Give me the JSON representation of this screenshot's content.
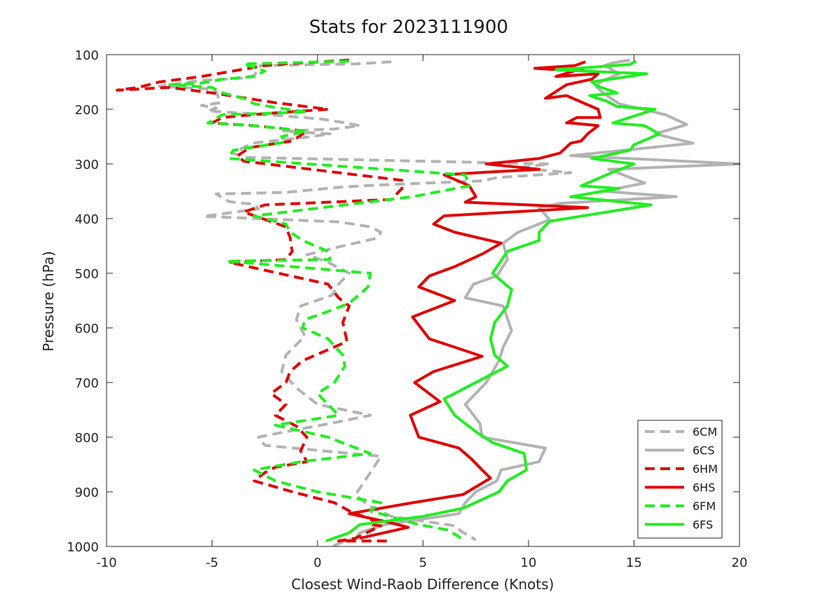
{
  "chart_data": {
    "type": "line",
    "title": "Stats for 2023111900",
    "xlabel": "Closest Wind-Raob Difference (Knots)",
    "ylabel": "Pressure (hPa)",
    "xlim": [
      -10,
      20
    ],
    "ylim": [
      1000,
      100
    ],
    "y_inverted": true,
    "xticks": [
      -10,
      -5,
      0,
      5,
      10,
      15,
      20
    ],
    "yticks": [
      100,
      200,
      300,
      400,
      500,
      600,
      700,
      800,
      900,
      1000
    ],
    "grid": false,
    "legend_position": "bottom-right",
    "series": [
      {
        "name": "6CM",
        "color": "#b3b3b3",
        "dash": "dashed",
        "x": [
          3.5,
          1.8,
          -2.7,
          -3.0,
          -3.5,
          -5.5,
          -7.5,
          -5.0,
          -4.8,
          -4.6,
          -5.5,
          -4.8,
          -5.2,
          -2.0,
          0.2,
          1.2,
          2.0,
          0.8,
          -1.6,
          0.6,
          -0.5,
          -3.1,
          -4.0,
          -3.5,
          11.0,
          9.5,
          12.0,
          8.5,
          7.8,
          3.3,
          1.2,
          -1.5,
          -4.8,
          -4.2,
          -3.0,
          -2.8,
          -5.4,
          1.0,
          2.5,
          3.0,
          2.8,
          1.2,
          -0.5,
          0.5,
          1.5,
          1.0,
          0.7,
          -0.8,
          -1.0,
          -0.6,
          -1.5,
          -1.7,
          -1.0,
          0.0,
          2.5,
          0.6,
          -1.5,
          -2.8,
          -2.5,
          3.0,
          2.5,
          1.8,
          2.4,
          3.5,
          6.5,
          6.8,
          7.5
        ],
        "y": [
          113,
          117,
          120,
          138,
          143,
          147,
          158,
          163,
          168,
          188,
          193,
          198,
          203,
          211,
          218,
          224,
          230,
          236,
          240,
          245,
          251,
          262,
          280,
          288,
          300,
          307,
          316,
          325,
          331,
          338,
          342,
          352,
          355,
          369,
          374,
          382,
          396,
          406,
          415,
          425,
          436,
          450,
          466,
          480,
          500,
          520,
          540,
          560,
          585,
          615,
          650,
          680,
          710,
          740,
          760,
          775,
          790,
          800,
          815,
          835,
          865,
          905,
          925,
          945,
          962,
          972,
          988
        ]
      },
      {
        "name": "6CS",
        "color": "#b3b3b3",
        "dash": "solid",
        "x": [
          14.8,
          14.0,
          13.6,
          14.3,
          13.5,
          13.2,
          13.6,
          14.3,
          16.5,
          17.5,
          16.0,
          17.8,
          12.0,
          20.0,
          13.8,
          15.5,
          13.5,
          17.0,
          11.5,
          10.5,
          11.0,
          9.5,
          8.8,
          9.0,
          8.5,
          7.4,
          7.0,
          8.8,
          9.2,
          8.8,
          8.6,
          8.0,
          7.0,
          7.7,
          7.8,
          10.8,
          10.5,
          8.7,
          8.5,
          7.5,
          7.0,
          6.7,
          3.2,
          2.0,
          1.8,
          1.3,
          1.0,
          0.8,
          0.8
        ],
        "y": [
          110,
          115,
          120,
          135,
          148,
          158,
          172,
          190,
          210,
          228,
          245,
          262,
          285,
          300,
          310,
          335,
          350,
          360,
          372,
          380,
          402,
          425,
          445,
          475,
          505,
          520,
          545,
          560,
          605,
          635,
          660,
          700,
          740,
          775,
          800,
          820,
          845,
          860,
          880,
          900,
          920,
          940,
          960,
          975,
          985,
          990,
          995,
          998,
          1000
        ]
      },
      {
        "name": "6HM",
        "color": "#e00000",
        "dash": "dashed",
        "x": [
          1.5,
          -1.5,
          -2.5,
          -5.5,
          -7.5,
          -8.5,
          -9.5,
          -7.0,
          -5.0,
          -2.0,
          0.5,
          -2.5,
          -4.5,
          -5.0,
          -3.0,
          -0.5,
          -1.2,
          -3.2,
          -3.8,
          -3.5,
          4.0,
          4.0,
          3.5,
          -2.5,
          -3.5,
          -1.5,
          -1.3,
          -1.2,
          -1.5,
          -4.2,
          0.5,
          1.0,
          1.5,
          1.2,
          1.4,
          -0.7,
          -1.3,
          -1.5,
          -2.2,
          -1.5,
          -2.0,
          -1.0,
          -0.5,
          -0.8,
          -0.5,
          -2.0,
          -2.5,
          -3.0,
          -1.2,
          0.8,
          1.5,
          2.8,
          2.5,
          3.0,
          1.8,
          1.0,
          3.5
        ],
        "y": [
          110,
          117,
          120,
          140,
          150,
          160,
          165,
          160,
          170,
          188,
          200,
          208,
          215,
          225,
          230,
          240,
          258,
          270,
          285,
          295,
          330,
          345,
          365,
          375,
          388,
          415,
          435,
          460,
          475,
          480,
          520,
          545,
          560,
          590,
          625,
          660,
          680,
          700,
          720,
          740,
          760,
          780,
          800,
          825,
          845,
          855,
          865,
          880,
          900,
          920,
          935,
          955,
          960,
          962,
          985,
          990,
          990
        ]
      },
      {
        "name": "6HS",
        "color": "#e00000",
        "dash": "solid",
        "x": [
          12.7,
          12.2,
          10.3,
          11.5,
          12.6,
          11.3,
          13.3,
          13.0,
          11.8,
          10.8,
          11.8,
          13.3,
          13.4,
          12.3,
          11.8,
          12.0,
          13.3,
          12.8,
          12.5,
          12.0,
          11.5,
          10.5,
          8.0,
          10.5,
          8.0,
          6.0,
          7.2,
          7.5,
          7.0,
          10.0,
          12.8,
          6.0,
          5.5,
          6.5,
          8.7,
          7.8,
          6.5,
          5.3,
          4.8,
          6.5,
          4.5,
          5.3,
          7.8,
          5.5,
          4.6,
          5.8,
          4.4,
          4.8,
          6.7,
          7.3,
          7.8,
          8.2,
          6.9,
          4.5,
          1.5,
          3.3,
          4.3,
          2.0
        ],
        "y": [
          113,
          120,
          125,
          128,
          125,
          140,
          135,
          145,
          155,
          180,
          175,
          200,
          215,
          215,
          225,
          225,
          230,
          245,
          258,
          262,
          280,
          290,
          300,
          310,
          315,
          320,
          340,
          360,
          370,
          375,
          380,
          395,
          410,
          425,
          445,
          465,
          488,
          505,
          525,
          550,
          580,
          620,
          652,
          680,
          700,
          735,
          760,
          800,
          820,
          840,
          860,
          875,
          905,
          920,
          940,
          955,
          965,
          985
        ]
      },
      {
        "name": "6FM",
        "color": "#22ee22",
        "dash": "dashed",
        "x": [
          1.5,
          -3.5,
          -2.5,
          -3.0,
          -4.5,
          -5.5,
          -7.0,
          -5.0,
          -4.5,
          -3.5,
          -3.0,
          -1.8,
          -0.5,
          -4.5,
          -5.2,
          -3.0,
          -1.5,
          -0.5,
          -1.7,
          -1.5,
          -4.0,
          -4.2,
          7.0,
          7.2,
          4.5,
          -3.0,
          -1.5,
          -1.3,
          -0.7,
          0.5,
          0.6,
          -4.3,
          2.5,
          2.4,
          1.5,
          0.5,
          -0.6,
          -0.7,
          0.5,
          1.2,
          1.3,
          0.8,
          0.0,
          0.5,
          1.0,
          -2.0,
          0.5,
          2.5,
          -0.8,
          -3.0,
          -2.0,
          0.0,
          3.0,
          2.5,
          4.8,
          6.2,
          6.8
        ],
        "y": [
          112,
          117,
          130,
          140,
          145,
          152,
          155,
          160,
          170,
          180,
          190,
          198,
          205,
          210,
          225,
          230,
          236,
          240,
          250,
          260,
          275,
          290,
          320,
          340,
          360,
          395,
          410,
          425,
          440,
          460,
          475,
          478,
          500,
          525,
          555,
          570,
          585,
          600,
          620,
          650,
          670,
          700,
          720,
          740,
          760,
          778,
          800,
          830,
          845,
          860,
          880,
          900,
          920,
          935,
          960,
          970,
          985
        ]
      },
      {
        "name": "6FS",
        "color": "#22ee22",
        "dash": "solid",
        "x": [
          15.1,
          14.8,
          11.3,
          15.6,
          13.0,
          13.3,
          14.2,
          12.9,
          13.7,
          14.2,
          16.0,
          14.0,
          15.5,
          16.2,
          15.0,
          14.8,
          13.0,
          15.0,
          14.0,
          12.5,
          14.3,
          12.0,
          15.8,
          11.0,
          10.5,
          10.5,
          9.0,
          8.3,
          9.2,
          9.0,
          8.4,
          8.2,
          8.4,
          9.0,
          8.0,
          7.0,
          6.0,
          6.5,
          7.5,
          8.3,
          9.8,
          9.9,
          9.0,
          8.6,
          6.9,
          5.0,
          2.0,
          1.5,
          0.4
        ],
        "y": [
          112,
          118,
          128,
          135,
          150,
          158,
          170,
          175,
          185,
          195,
          200,
          225,
          230,
          245,
          265,
          275,
          290,
          300,
          315,
          340,
          345,
          360,
          375,
          405,
          425,
          440,
          460,
          500,
          530,
          560,
          590,
          620,
          650,
          670,
          690,
          710,
          730,
          760,
          790,
          810,
          830,
          860,
          880,
          900,
          930,
          945,
          960,
          975,
          990
        ]
      }
    ]
  }
}
